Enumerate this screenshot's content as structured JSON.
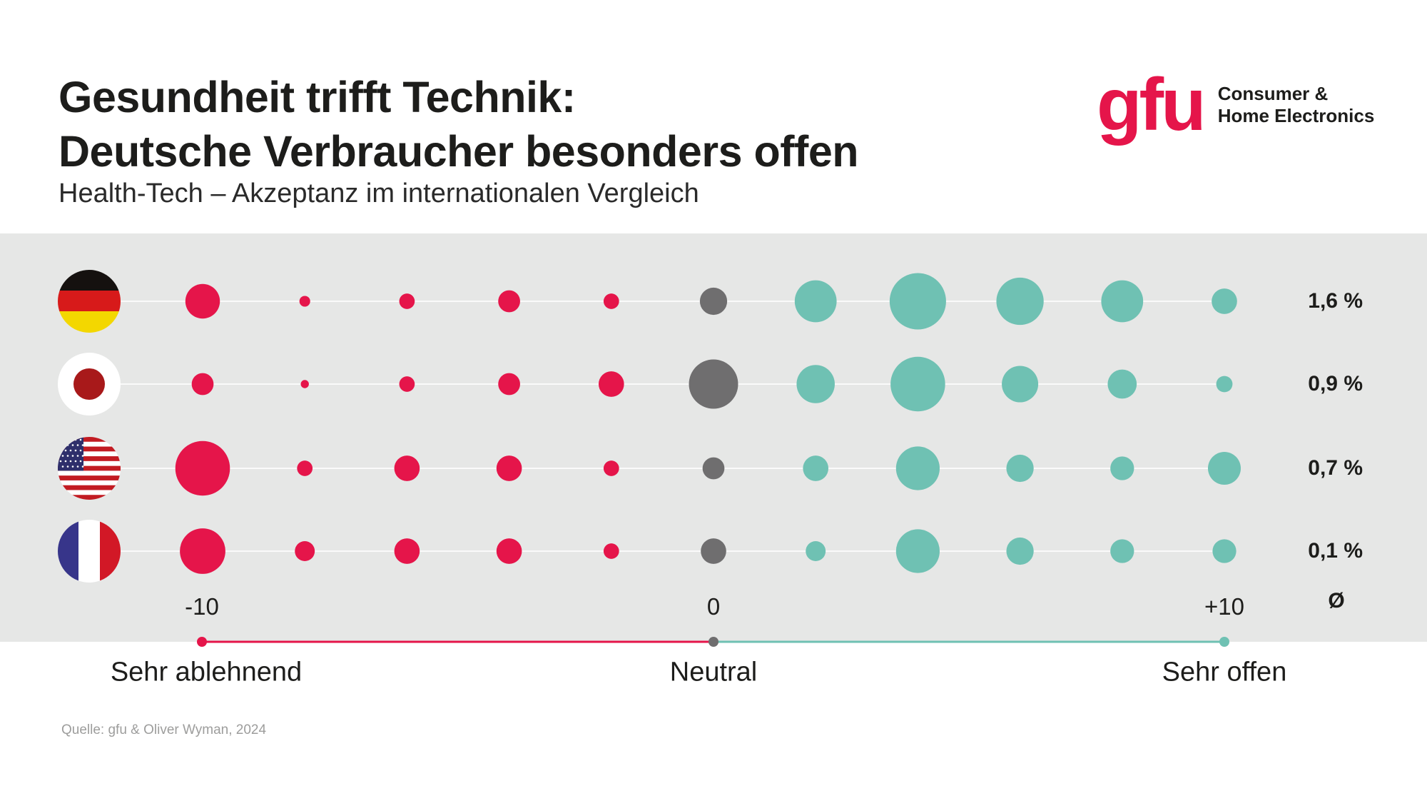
{
  "header": {
    "title_line1": "Gesundheit trifft Technik:",
    "title_line2": "Deutsche Verbraucher besonders offen",
    "subtitle": "Health-Tech – Akzeptanz im internationalen Vergleich"
  },
  "logo": {
    "mark": "gfu",
    "line1": "Consumer &",
    "line2": "Home Electronics"
  },
  "colors": {
    "negative": "#e5154a",
    "neutral": "#6f6e6f",
    "positive": "#6fc1b3",
    "band": "#e6e7e6"
  },
  "chart_data": {
    "type": "bubble-dot-plot",
    "title": "Health-Tech – Akzeptanz im internationalen Vergleich",
    "x": [
      -10,
      -8,
      -6,
      -4,
      -2,
      0,
      2,
      4,
      6,
      8,
      10
    ],
    "tick_labels": {
      "left": "-10",
      "center": "0",
      "right": "+10"
    },
    "average_header": "Ø",
    "scale_labels": {
      "left": "Sehr ablehnend",
      "center": "Neutral",
      "right": "Sehr offen"
    },
    "value_meaning": "relative share of respondents (estimated from bubble area)",
    "series": [
      {
        "name": "Deutschland",
        "flag": "de-flag-icon",
        "average": "1,6 %",
        "values": [
          14.4,
          1.4,
          2.9,
          5.8,
          2.9,
          9.0,
          21.2,
          38.4,
          27.0,
          21.2,
          7.8
        ]
      },
      {
        "name": "Japan",
        "flag": "jp-flag-icon",
        "average": "0,9 %",
        "values": [
          5.8,
          0.8,
          2.9,
          5.8,
          7.8,
          29.2,
          17.6,
          36.0,
          16.0,
          10.2,
          3.2
        ]
      },
      {
        "name": "USA",
        "flag": "us-flag-icon",
        "average": "0,7 %",
        "values": [
          36.0,
          2.9,
          7.8,
          7.8,
          2.9,
          5.8,
          7.8,
          23.0,
          9.0,
          6.8,
          13.0
        ]
      },
      {
        "name": "Frankreich",
        "flag": "fr-flag-icon",
        "average": "0,1 %",
        "values": [
          25.0,
          4.8,
          7.8,
          7.8,
          2.9,
          7.8,
          4.8,
          23.0,
          9.0,
          6.8,
          6.8
        ]
      }
    ]
  },
  "footer": {
    "source": "Quelle:  gfu & Oliver Wyman, 2024"
  }
}
